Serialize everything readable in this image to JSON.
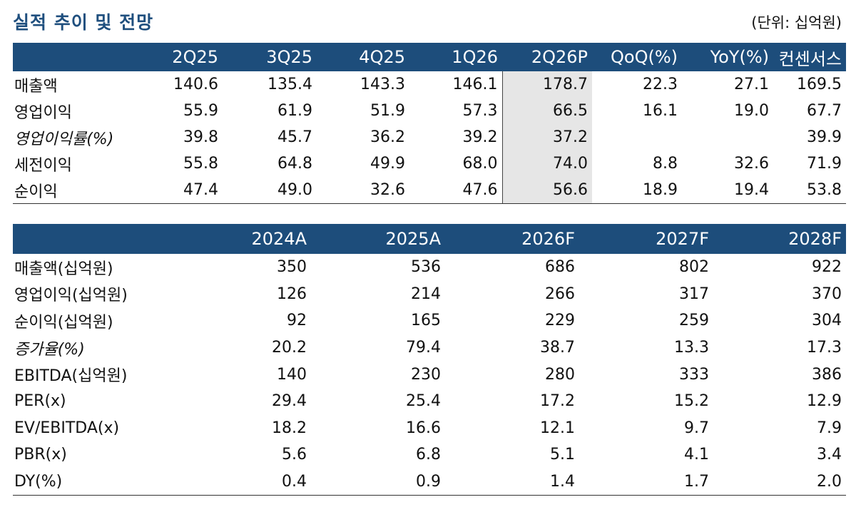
{
  "header": {
    "title": "실적 추이 및 전망",
    "unit": "(단위: 십억원)"
  },
  "quarterly": {
    "columns": [
      "",
      "2Q25",
      "3Q25",
      "4Q25",
      "1Q26",
      "2Q26P",
      "QoQ(%)",
      "YoY(%)",
      "컨센서스"
    ],
    "rows": [
      {
        "label": "매출액",
        "italic": false,
        "values": [
          "140.6",
          "135.4",
          "143.3",
          "146.1",
          "178.7",
          "22.3",
          "27.1",
          "169.5"
        ]
      },
      {
        "label": "영업이익",
        "italic": false,
        "values": [
          "55.9",
          "61.9",
          "51.9",
          "57.3",
          "66.5",
          "16.1",
          "19.0",
          "67.7"
        ]
      },
      {
        "label": "영업이익률(%)",
        "italic": true,
        "values": [
          "39.8",
          "45.7",
          "36.2",
          "39.2",
          "37.2",
          "",
          "",
          "39.9"
        ]
      },
      {
        "label": "세전이익",
        "italic": false,
        "values": [
          "55.8",
          "64.8",
          "49.9",
          "68.0",
          "74.0",
          "8.8",
          "32.6",
          "71.9"
        ]
      },
      {
        "label": "순이익",
        "italic": false,
        "values": [
          "47.4",
          "49.0",
          "32.6",
          "47.6",
          "56.6",
          "18.9",
          "19.4",
          "53.8"
        ]
      }
    ],
    "highlight_color": "#e6e6e6"
  },
  "annual": {
    "columns": [
      "",
      "2024A",
      "2025A",
      "2026F",
      "2027F",
      "2028F"
    ],
    "rows": [
      {
        "label": "매출액(십억원)",
        "italic": false,
        "values": [
          "350",
          "536",
          "686",
          "802",
          "922"
        ]
      },
      {
        "label": "영업이익(십억원)",
        "italic": false,
        "values": [
          "126",
          "214",
          "266",
          "317",
          "370"
        ]
      },
      {
        "label": "순이익(십억원)",
        "italic": false,
        "values": [
          "92",
          "165",
          "229",
          "259",
          "304"
        ]
      },
      {
        "label": "증가율(%)",
        "italic": true,
        "values": [
          "20.2",
          "79.4",
          "38.7",
          "13.3",
          "17.3"
        ]
      },
      {
        "label": "EBITDA(십억원)",
        "italic": false,
        "values": [
          "140",
          "230",
          "280",
          "333",
          "386"
        ]
      },
      {
        "label": "PER(x)",
        "italic": false,
        "values": [
          "29.4",
          "25.4",
          "17.2",
          "15.2",
          "12.9"
        ]
      },
      {
        "label": "EV/EBITDA(x)",
        "italic": false,
        "values": [
          "18.2",
          "16.6",
          "12.1",
          "9.7",
          "7.9"
        ]
      },
      {
        "label": "PBR(x)",
        "italic": false,
        "values": [
          "5.6",
          "6.8",
          "5.1",
          "4.1",
          "3.4"
        ]
      },
      {
        "label": "DY(%)",
        "italic": false,
        "values": [
          "0.4",
          "0.9",
          "1.4",
          "1.7",
          "2.0"
        ]
      }
    ]
  },
  "colors": {
    "title": "#1f4f7e",
    "header_bg": "#1d4d7b",
    "header_text": "#ffffff"
  }
}
